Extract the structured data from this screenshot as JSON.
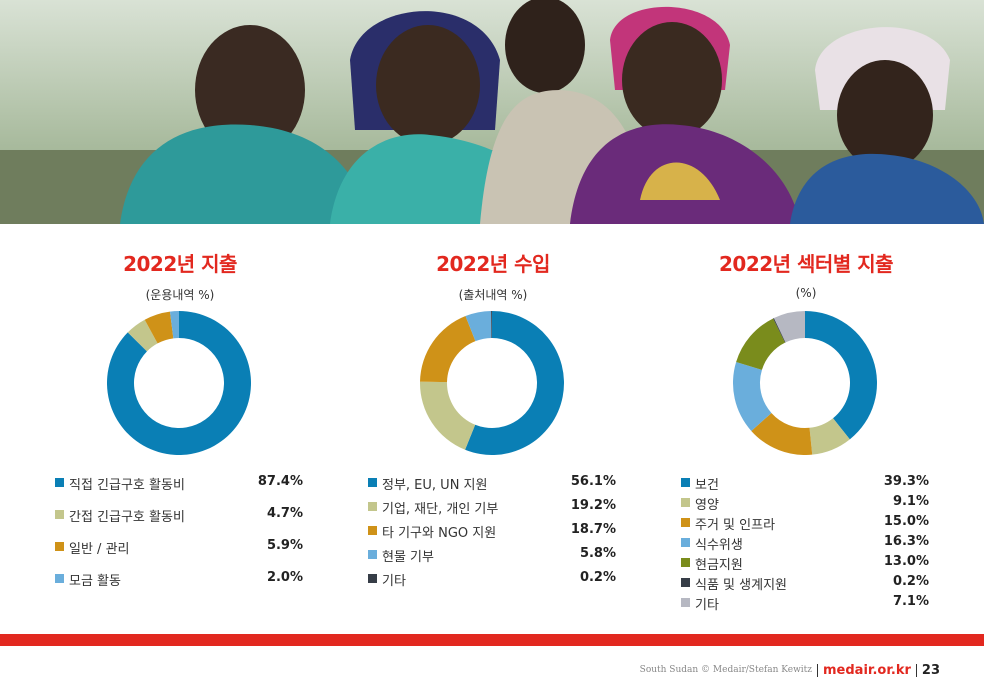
{
  "photo": {
    "alt": ""
  },
  "charts": [
    {
      "title": "2022년 지출",
      "subtitle": "(운용내역 %)",
      "items": [
        {
          "label": "직접 긴급구호 활동비",
          "value": "87.4%",
          "pct": 87.4,
          "color": "#0a7fb5"
        },
        {
          "label": "간접 긴급구호 활동비",
          "value": "4.7%",
          "pct": 4.7,
          "color": "#c3c68c"
        },
        {
          "label": "일반 / 관리",
          "value": "5.9%",
          "pct": 5.9,
          "color": "#cf9218"
        },
        {
          "label": "모금 활동",
          "value": "2.0%",
          "pct": 2.0,
          "color": "#6aaedc"
        }
      ]
    },
    {
      "title": "2022년 수입",
      "subtitle": "(출처내역 %)",
      "items": [
        {
          "label": "정부, EU, UN 지원",
          "value": "56.1%",
          "pct": 56.1,
          "color": "#0a7fb5"
        },
        {
          "label": "기업, 재단, 개인 기부",
          "value": "19.2%",
          "pct": 19.2,
          "color": "#c3c68c"
        },
        {
          "label": "타 기구와 NGO 지원",
          "value": "18.7%",
          "pct": 18.7,
          "color": "#cf9218"
        },
        {
          "label": "현물 기부",
          "value": "5.8%",
          "pct": 5.8,
          "color": "#6aaedc"
        },
        {
          "label": "기타",
          "value": "0.2%",
          "pct": 0.2,
          "color": "#363d47"
        }
      ]
    },
    {
      "title": "2022년 섹터별 지출",
      "subtitle": "(%)",
      "items": [
        {
          "label": "보건",
          "value": "39.3%",
          "pct": 39.3,
          "color": "#0a7fb5"
        },
        {
          "label": "영양",
          "value": "9.1%",
          "pct": 9.1,
          "color": "#c3c68c"
        },
        {
          "label": "주거 및 인프라",
          "value": "15.0%",
          "pct": 15.0,
          "color": "#cf9218"
        },
        {
          "label": "식수위생",
          "value": "16.3%",
          "pct": 16.3,
          "color": "#6aaedc"
        },
        {
          "label": "현금지원",
          "value": "13.0%",
          "pct": 13.0,
          "color": "#7a8c1c"
        },
        {
          "label": "식품 및 생계지원",
          "value": "0.2%",
          "pct": 0.2,
          "color": "#363d47"
        },
        {
          "label": "기타",
          "value": "7.1%",
          "pct": 7.1,
          "color": "#b6b8c2"
        }
      ]
    }
  ],
  "footer": {
    "credit": "South Sudan © Medair/Stefan Kewitz",
    "site": "medair.or.kr",
    "page": "23"
  }
}
